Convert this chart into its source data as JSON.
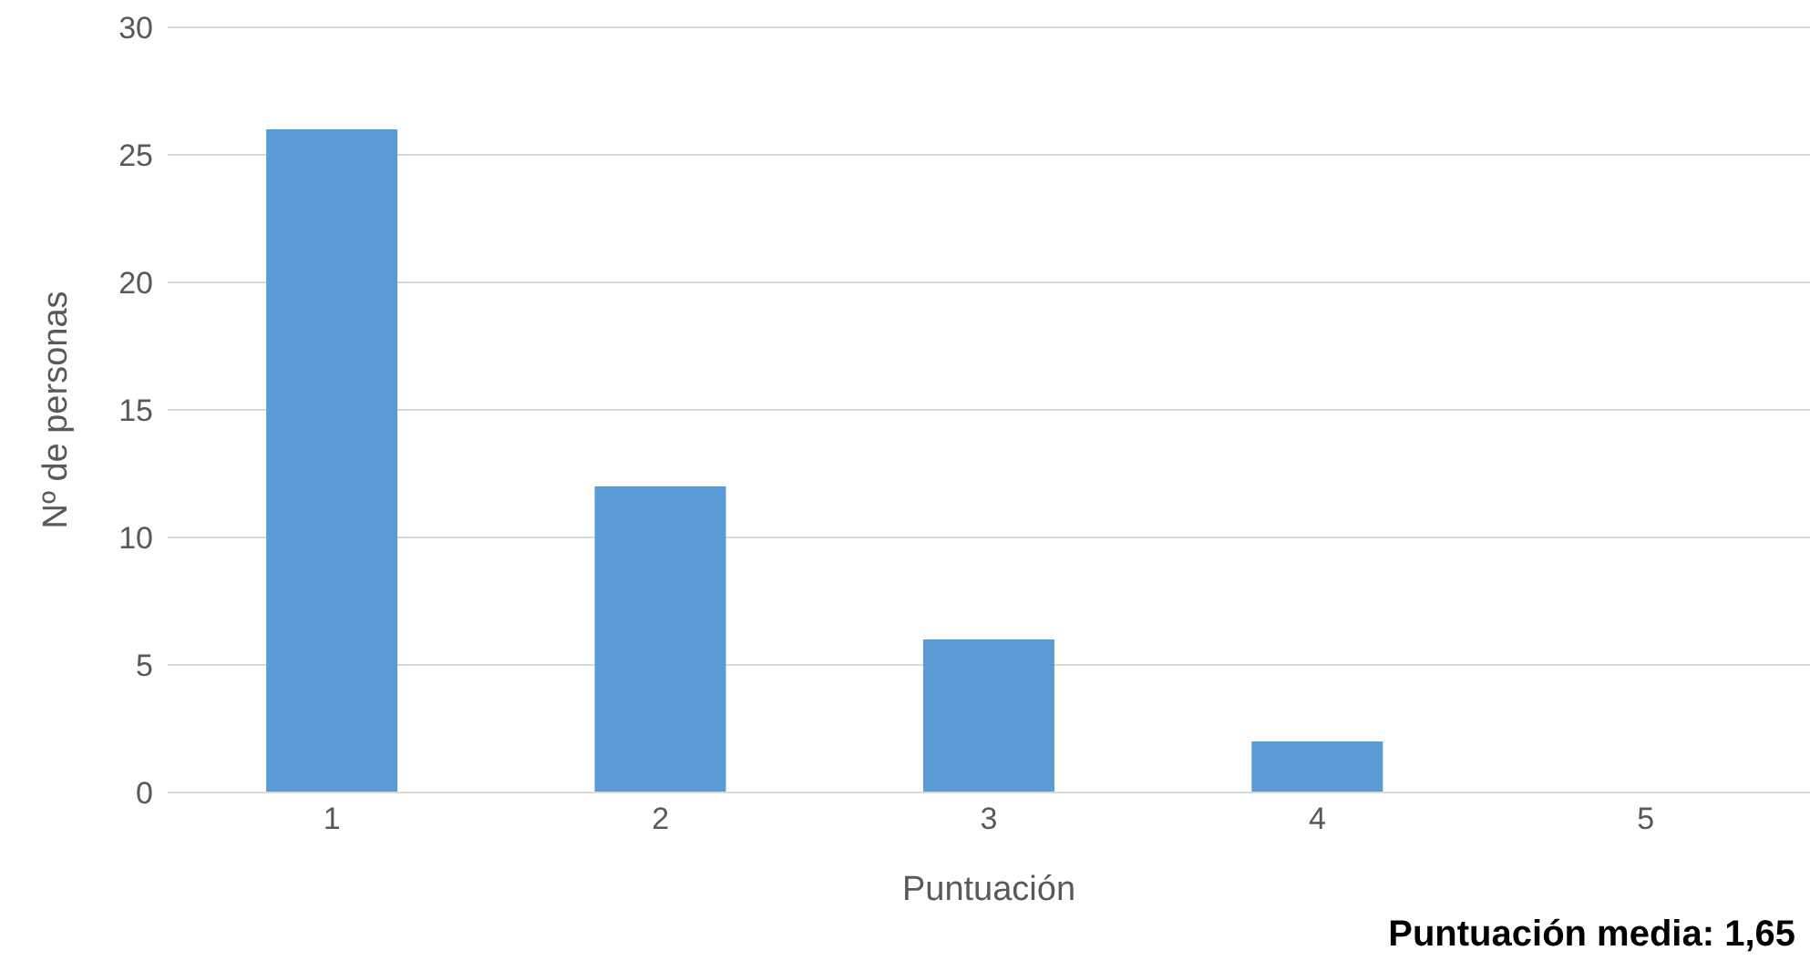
{
  "chart_data": {
    "type": "bar",
    "xlabel": "Puntuación",
    "ylabel": "Nº de personas",
    "categories": [
      "1",
      "2",
      "3",
      "4",
      "5"
    ],
    "values": [
      26,
      12,
      6,
      2,
      0
    ],
    "color": "#5b9bd5",
    "ylim": [
      0,
      30
    ],
    "yticks": [
      0,
      5,
      10,
      15,
      20,
      25,
      30
    ],
    "grid": "y",
    "annotations": [
      "Puntuación media: 1,65"
    ]
  }
}
